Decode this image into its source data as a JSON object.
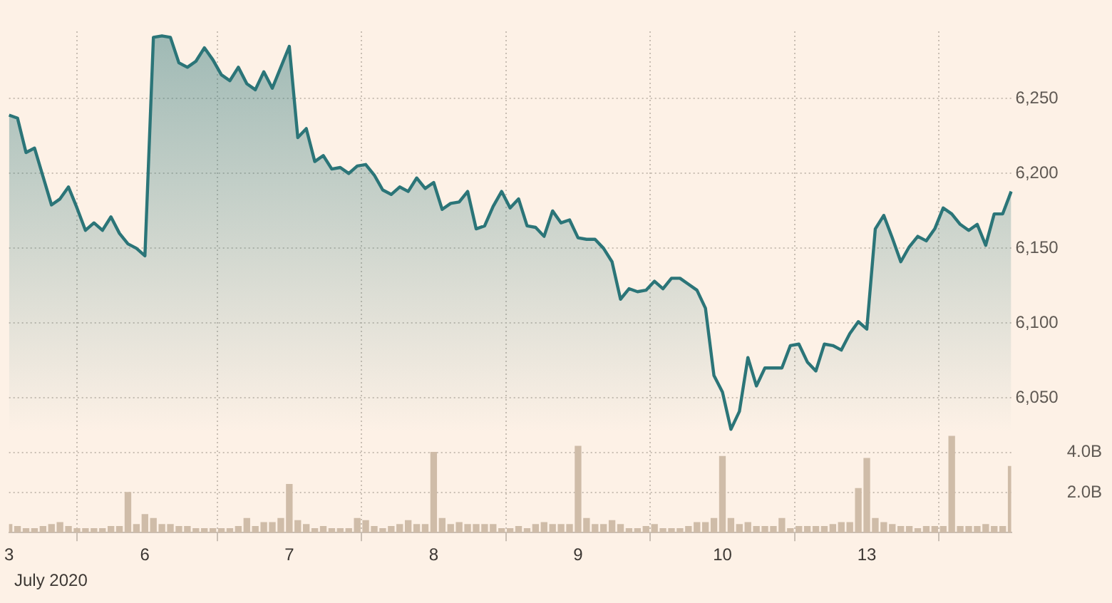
{
  "chart_data": {
    "type": "area",
    "categories": [
      "3",
      null,
      null,
      null,
      null,
      null,
      null,
      null,
      null,
      null,
      null,
      null,
      null,
      null,
      null,
      null,
      "6",
      null,
      null,
      null,
      null,
      null,
      null,
      null,
      null,
      null,
      null,
      null,
      null,
      null,
      null,
      null,
      null,
      "7",
      null,
      null,
      null,
      null,
      null,
      null,
      null,
      null,
      null,
      null,
      null,
      null,
      null,
      null,
      null,
      null,
      "8",
      null,
      null,
      null,
      null,
      null,
      null,
      null,
      null,
      null,
      null,
      null,
      null,
      null,
      null,
      null,
      null,
      "9",
      null,
      null,
      null,
      null,
      null,
      null,
      null,
      null,
      null,
      null,
      null,
      null,
      null,
      null,
      null,
      null,
      "10",
      null,
      null,
      null,
      null,
      null,
      null,
      null,
      null,
      null,
      null,
      null,
      null,
      null,
      null,
      null,
      null,
      "13",
      null,
      null,
      null,
      null,
      null,
      null,
      null,
      null,
      null,
      null,
      null,
      null,
      null,
      null,
      null,
      null,
      null
    ],
    "ylim": [
      5960,
      6295
    ],
    "yticks": [
      {
        "value": 6050,
        "label": "6,050"
      },
      {
        "value": 6100,
        "label": "6,100"
      },
      {
        "value": 6150,
        "label": "6,150"
      },
      {
        "value": 6200,
        "label": "6,200"
      },
      {
        "value": 6250,
        "label": "6,250"
      }
    ],
    "y2lim": [
      0,
      25
    ],
    "y2ticks": [
      {
        "value": 2,
        "label": "2.0B"
      },
      {
        "value": 4,
        "label": "4.0B"
      }
    ],
    "grid": true,
    "annotations": [
      "July 2020"
    ],
    "series": [
      {
        "color": "#2b7578",
        "values": [
          6239,
          6237,
          6214,
          6217,
          6198,
          6179,
          6183,
          6191,
          6177,
          6162,
          6167,
          6162,
          6171,
          6160,
          6153,
          6150,
          6145,
          6291,
          6292,
          6291,
          6274,
          6271,
          6275,
          6284,
          6276,
          6266,
          6262,
          6271,
          6260,
          6256,
          6268,
          6257,
          6271,
          6285,
          6224,
          6230,
          6208,
          6212,
          6203,
          6204,
          6200,
          6205,
          6206,
          6199,
          6189,
          6186,
          6191,
          6188,
          6197,
          6190,
          6194,
          6176,
          6180,
          6181,
          6188,
          6163,
          6165,
          6178,
          6188,
          6177,
          6183,
          6165,
          6164,
          6158,
          6175,
          6167,
          6169,
          6157,
          6156,
          6156,
          6150,
          6141,
          6116,
          6123,
          6121,
          6122,
          6128,
          6123,
          6130,
          6130,
          6126,
          6122,
          6110,
          6065,
          6054,
          6029,
          6041,
          6077,
          6058,
          6070,
          6070,
          6070,
          6085,
          6086,
          6074,
          6068,
          6086,
          6085,
          6082,
          6093,
          6101,
          6096,
          6163,
          6172,
          6157,
          6141,
          6151,
          6158,
          6155,
          6163,
          6177,
          6173,
          6166,
          6162,
          6166,
          6152,
          6173,
          6173,
          6188
        ]
      },
      {
        "type": "bar",
        "color": "#cfbca8",
        "axis": "y2",
        "values": [
          0.4,
          0.3,
          0.2,
          0.2,
          0.3,
          0.4,
          0.5,
          0.3,
          0.2,
          0.2,
          0.2,
          0.2,
          0.3,
          0.3,
          2.0,
          0.4,
          0.9,
          0.7,
          0.4,
          0.4,
          0.3,
          0.3,
          0.2,
          0.2,
          0.2,
          0.2,
          0.2,
          0.3,
          0.7,
          0.3,
          0.5,
          0.5,
          0.7,
          2.4,
          0.6,
          0.4,
          0.2,
          0.3,
          0.2,
          0.2,
          0.2,
          0.7,
          0.6,
          0.3,
          0.2,
          0.3,
          0.4,
          0.6,
          0.4,
          0.4,
          4.0,
          0.7,
          0.4,
          0.5,
          0.4,
          0.4,
          0.4,
          0.4,
          0.2,
          0.2,
          0.3,
          0.2,
          0.4,
          0.5,
          0.4,
          0.4,
          0.4,
          4.3,
          0.7,
          0.4,
          0.4,
          0.6,
          0.4,
          0.2,
          0.2,
          0.3,
          0.4,
          0.2,
          0.2,
          0.2,
          0.3,
          0.5,
          0.5,
          0.7,
          3.8,
          0.7,
          0.4,
          0.5,
          0.3,
          0.3,
          0.3,
          0.7,
          0.2,
          0.3,
          0.3,
          0.3,
          0.3,
          0.4,
          0.5,
          0.5,
          2.2,
          3.7,
          0.7,
          0.5,
          0.4,
          0.3,
          0.3,
          0.2,
          0.3,
          0.3,
          0.3,
          4.8,
          0.3,
          0.3,
          0.3,
          0.4,
          0.3,
          0.3,
          3.3
        ]
      }
    ]
  }
}
